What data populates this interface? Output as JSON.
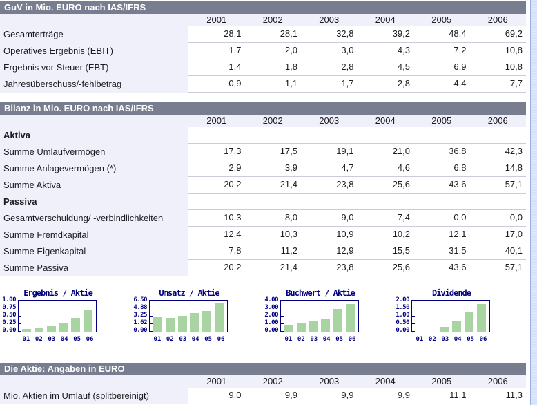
{
  "page": {
    "colors": {
      "section_header_bg": "#787e90",
      "section_header_text": "#ffffff",
      "row_band_bg": "#f0f0fa",
      "value_cell_bg": "#ffffff",
      "grid_line": "#c9ccd9",
      "chart_navy": "#000080",
      "chart_bar_green": "#a8d4a2",
      "scroll_strip_bg": "#dee8fa"
    }
  },
  "years": [
    "2001",
    "2002",
    "2003",
    "2004",
    "2005",
    "2006"
  ],
  "sections": [
    {
      "id": "guv",
      "title": "GuV in Mio. EURO nach IAS/IFRS",
      "rows": [
        {
          "label": "Gesamterträge",
          "values": [
            "28,1",
            "28,1",
            "32,8",
            "39,2",
            "48,4",
            "69,2"
          ]
        },
        {
          "label": "Operatives Ergebnis (EBIT)",
          "values": [
            "1,7",
            "2,0",
            "3,0",
            "4,3",
            "7,2",
            "10,8"
          ]
        },
        {
          "label": "Ergebnis vor Steuer (EBT)",
          "values": [
            "1,4",
            "1,8",
            "2,8",
            "4,5",
            "6,9",
            "10,8"
          ]
        },
        {
          "label": "Jahresüberschuss/-fehlbetrag",
          "values": [
            "0,9",
            "1,1",
            "1,7",
            "2,8",
            "4,4",
            "7,7"
          ]
        }
      ]
    },
    {
      "id": "bilanz",
      "title": "Bilanz in Mio. EURO nach IAS/IFRS",
      "rows": [
        {
          "label": "Aktiva",
          "bold": true,
          "values": [
            "",
            "",
            "",
            "",
            "",
            ""
          ]
        },
        {
          "label": "Summe Umlaufvermögen",
          "values": [
            "17,3",
            "17,5",
            "19,1",
            "21,0",
            "36,8",
            "42,3"
          ]
        },
        {
          "label": "Summe Anlagevermögen (*)",
          "values": [
            "2,9",
            "3,9",
            "4,7",
            "4,6",
            "6,8",
            "14,8"
          ]
        },
        {
          "label": "Summe Aktiva",
          "values": [
            "20,2",
            "21,4",
            "23,8",
            "25,6",
            "43,6",
            "57,1"
          ]
        },
        {
          "label": "Passiva",
          "bold": true,
          "values": [
            "",
            "",
            "",
            "",
            "",
            ""
          ]
        },
        {
          "label": "Gesamtverschuldung/ -verbindlichkeiten",
          "values": [
            "10,3",
            "8,0",
            "9,0",
            "7,4",
            "0,0",
            "0,0"
          ]
        },
        {
          "label": "Summe Fremdkapital",
          "values": [
            "12,4",
            "10,3",
            "10,9",
            "10,2",
            "12,1",
            "17,0"
          ]
        },
        {
          "label": "Summe Eigenkapital",
          "values": [
            "7,8",
            "11,2",
            "12,9",
            "15,5",
            "31,5",
            "40,1"
          ]
        },
        {
          "label": "Summe Passiva",
          "values": [
            "20,2",
            "21,4",
            "23,8",
            "25,6",
            "43,6",
            "57,1"
          ]
        }
      ]
    },
    {
      "id": "aktie",
      "title": "Die Aktie: Angaben in EURO",
      "rows": [
        {
          "label": "Mio. Aktien im Umlauf (splitbereinigt)",
          "values": [
            "9,0",
            "9,9",
            "9,9",
            "9,9",
            "11,1",
            "11,3"
          ]
        }
      ]
    }
  ],
  "chart_data": [
    {
      "type": "bar",
      "title": "Ergebnis / Aktie",
      "categories": [
        "01",
        "02",
        "03",
        "04",
        "05",
        "06"
      ],
      "values": [
        0.1,
        0.11,
        0.17,
        0.28,
        0.44,
        0.72
      ],
      "ylim": [
        0,
        1.0
      ],
      "yticks": [
        "1.00",
        "0.75",
        "0.50",
        "0.25",
        "0.00"
      ],
      "xlabel": "",
      "ylabel": "",
      "grid": false,
      "legend": "none"
    },
    {
      "type": "bar",
      "title": "Umsatz / Aktie",
      "categories": [
        "01",
        "02",
        "03",
        "04",
        "05",
        "06"
      ],
      "values": [
        3.12,
        2.84,
        3.31,
        3.96,
        4.36,
        6.12
      ],
      "ylim": [
        0,
        6.5
      ],
      "yticks": [
        "6.50",
        "4.88",
        "3.25",
        "1.62",
        "0.00"
      ],
      "xlabel": "",
      "ylabel": "",
      "grid": false,
      "legend": "none"
    },
    {
      "type": "bar",
      "title": "Buchwert / Aktie",
      "categories": [
        "01",
        "02",
        "03",
        "04",
        "05",
        "06"
      ],
      "values": [
        0.88,
        1.18,
        1.35,
        1.63,
        2.9,
        3.58
      ],
      "ylim": [
        0,
        4.0
      ],
      "yticks": [
        "4.00",
        "3.00",
        "2.00",
        "1.00",
        "0.00"
      ],
      "xlabel": "",
      "ylabel": "",
      "grid": false,
      "legend": "none"
    },
    {
      "type": "bar",
      "title": "Dividende",
      "categories": [
        "01",
        "02",
        "03",
        "04",
        "05",
        "06"
      ],
      "values": [
        0,
        0,
        0.3,
        0.7,
        1.25,
        1.75
      ],
      "ylim": [
        0,
        2.0
      ],
      "yticks": [
        "2.00",
        "1.50",
        "1.00",
        "0.50",
        "0.00"
      ],
      "xlabel": "",
      "ylabel": "",
      "grid": false,
      "legend": "none"
    }
  ]
}
